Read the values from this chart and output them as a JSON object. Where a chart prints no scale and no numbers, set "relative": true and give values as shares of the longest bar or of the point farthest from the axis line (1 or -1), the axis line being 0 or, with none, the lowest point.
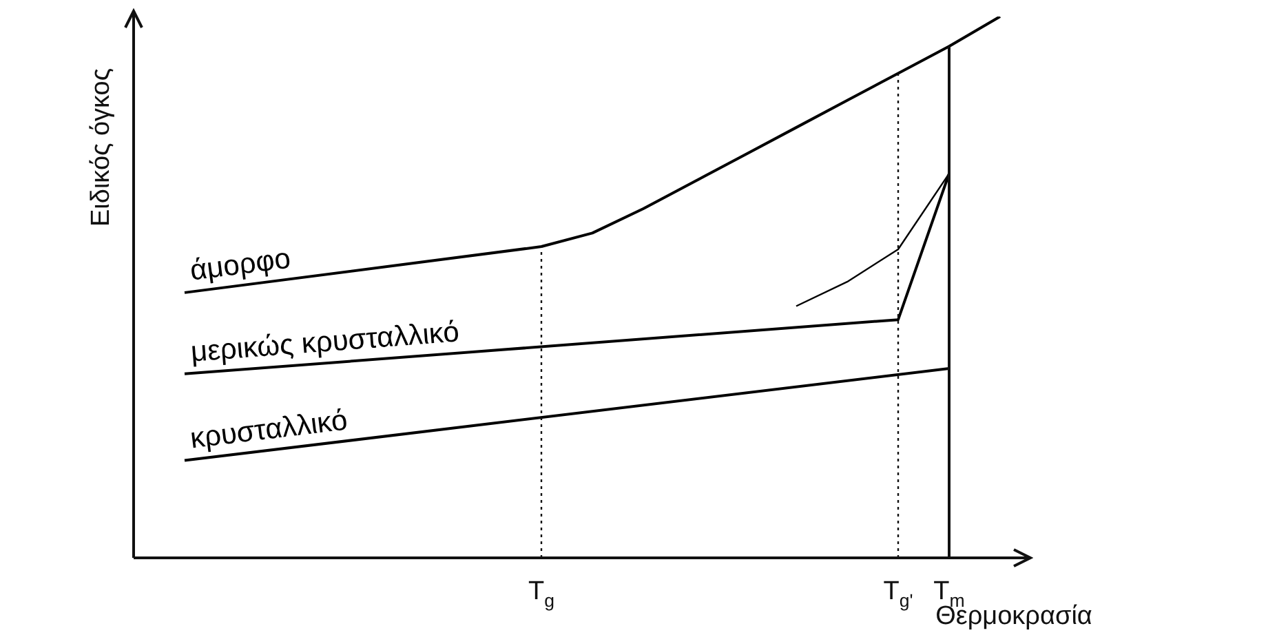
{
  "chart_data": {
    "type": "line",
    "relative": true,
    "xlabel": "Θερμοκρασία",
    "ylabel": "Ειδικός όγκος",
    "categories": [
      null,
      null,
      null,
      null,
      null,
      null,
      null,
      null,
      "T$_{g}$",
      null,
      null,
      null,
      null,
      null,
      null,
      "T$_{g'}$",
      "T$_{m}$",
      null
    ],
    "series": [
      {
        "name": "άμορφο",
        "color": "#000000",
        "values": [
          null,
          0.49,
          null,
          null,
          null,
          null,
          null,
          null,
          0.575,
          0.6,
          0.645,
          0.695,
          0.745,
          0.795,
          0.845,
          0.895,
          0.945,
          1
        ]
      },
      {
        "name": "μερικώς κρυσταλλικό",
        "color": "#000000",
        "values": [
          null,
          0.34,
          null,
          null,
          null,
          null,
          null,
          null,
          null,
          null,
          null,
          null,
          null,
          null,
          null,
          0.44,
          0.71,
          null
        ]
      },
      {
        "color": "#000000",
        "values": [
          null,
          null,
          null,
          null,
          null,
          null,
          null,
          null,
          null,
          null,
          null,
          null,
          null,
          0.465,
          0.51,
          0.57,
          0.71,
          null
        ]
      },
      {
        "name": "κρυσταλλικό",
        "color": "#000000",
        "values": [
          null,
          0.18,
          null,
          null,
          null,
          null,
          null,
          null,
          null,
          null,
          null,
          null,
          null,
          null,
          null,
          null,
          0.35,
          null
        ]
      }
    ],
    "ref_lines": [
      {
        "axis": "x",
        "value": "T$_{g}$",
        "line_style": "dotted"
      },
      {
        "axis": "x",
        "value": "T$_{g'}$",
        "line_style": "dotted"
      },
      {
        "axis": "x",
        "value": "T$_{m}$",
        "line_style": "solid"
      }
    ],
    "legend": false,
    "marker": "none"
  }
}
